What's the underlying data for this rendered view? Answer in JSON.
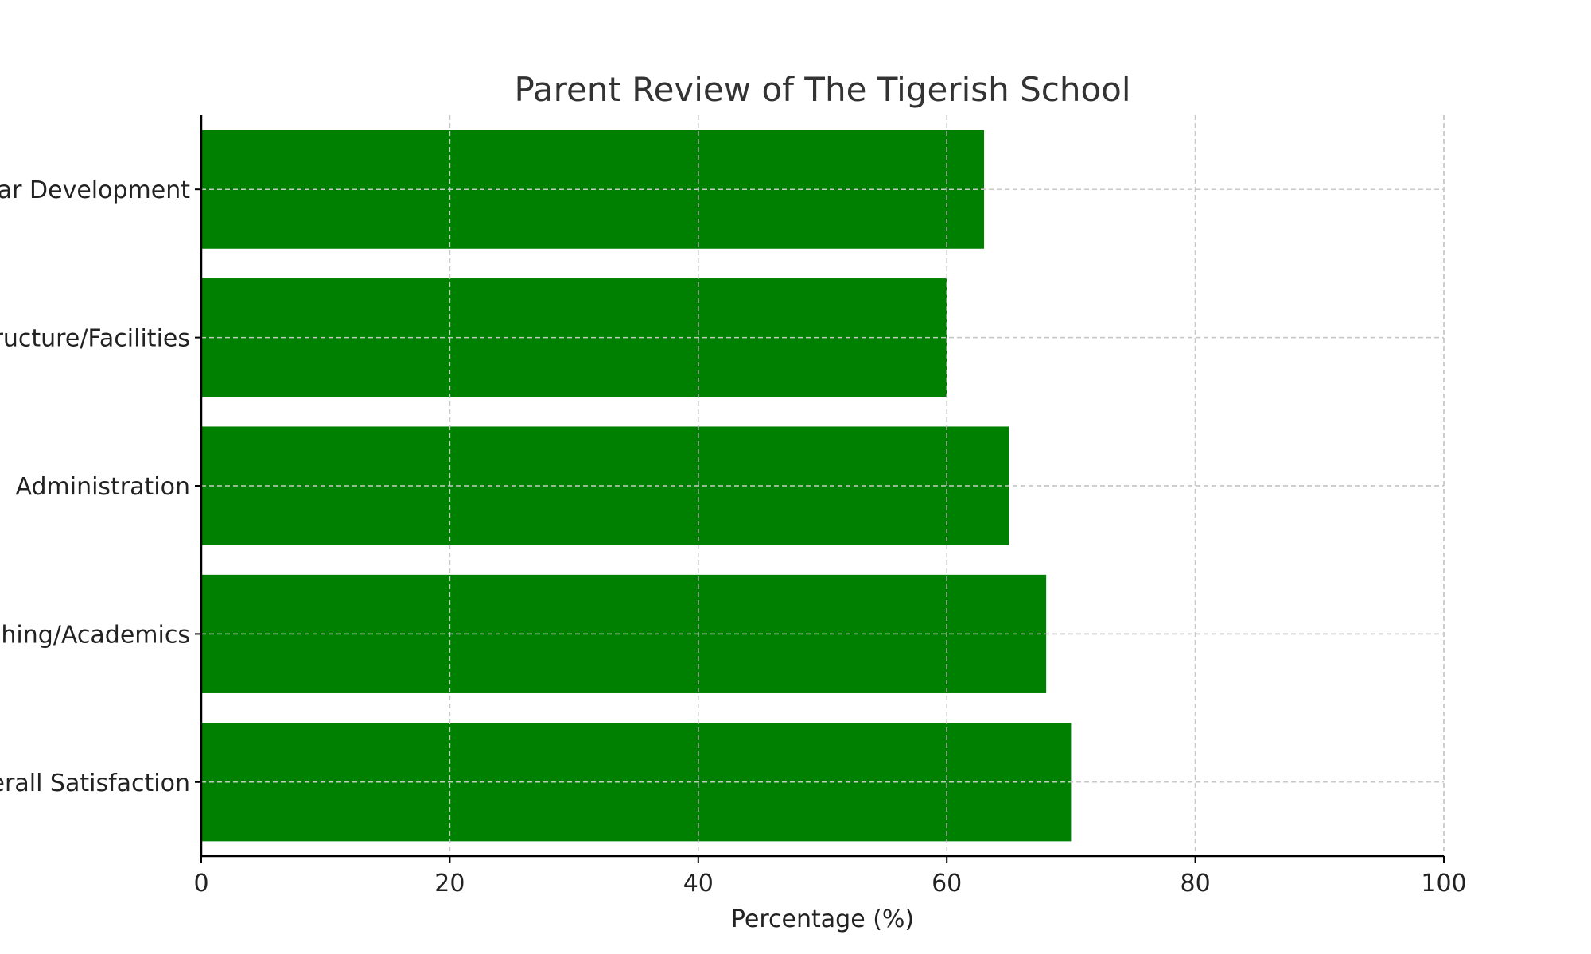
{
  "chart_data": {
    "type": "bar",
    "orientation": "horizontal",
    "title": "Parent Review of The Tigerish School",
    "xlabel": "Percentage (%)",
    "ylabel": "",
    "categories": [
      "Overall Satisfaction",
      "Teaching/Academics",
      "Administration",
      "Infrastructure/Facilities",
      "Extracurricular Development"
    ],
    "values": [
      70,
      68,
      65,
      60,
      63
    ],
    "xlim": [
      0,
      100
    ],
    "xticks": [
      "0",
      "20",
      "40",
      "60",
      "80",
      "100"
    ],
    "grid": true,
    "bar_color": "#008000"
  }
}
